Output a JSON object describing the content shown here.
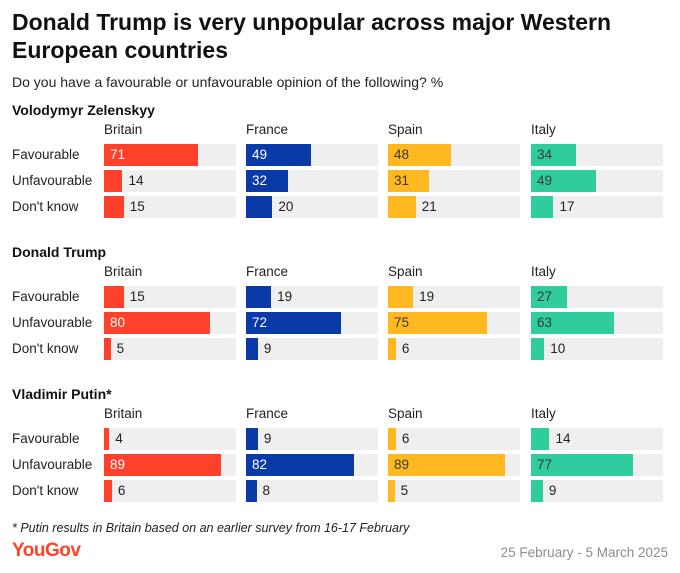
{
  "title": "Donald Trump is very unpopular across major Western European countries",
  "subtitle": "Do you have a favourable or unfavourable opinion of the following? %",
  "footnote": "* Putin results in Britain based on an earlier survey from 16-17 February",
  "brand": "YouGov",
  "date_range": "25 February - 5 March 2025",
  "colors": {
    "Britain": "#ff412c",
    "France": "#0a3aa8",
    "Spain": "#ffb81f",
    "Italy": "#2fcc9e",
    "track": "#efefef"
  },
  "chart_data": {
    "type": "bar",
    "orientation": "horizontal",
    "xlim": [
      0,
      100
    ],
    "countries": [
      "Britain",
      "France",
      "Spain",
      "Italy"
    ],
    "categories": [
      "Favourable",
      "Unfavourable",
      "Don't know"
    ],
    "panels": [
      {
        "name": "Volodymyr Zelenskyy",
        "values": {
          "Britain": [
            71,
            14,
            15
          ],
          "France": [
            49,
            32,
            20
          ],
          "Spain": [
            48,
            31,
            21
          ],
          "Italy": [
            34,
            49,
            17
          ]
        }
      },
      {
        "name": "Donald Trump",
        "values": {
          "Britain": [
            15,
            80,
            5
          ],
          "France": [
            19,
            72,
            9
          ],
          "Spain": [
            19,
            75,
            6
          ],
          "Italy": [
            27,
            63,
            10
          ]
        }
      },
      {
        "name": "Vladimir Putin*",
        "values": {
          "Britain": [
            4,
            89,
            6
          ],
          "France": [
            9,
            82,
            8
          ],
          "Spain": [
            6,
            89,
            5
          ],
          "Italy": [
            14,
            77,
            9
          ]
        }
      }
    ]
  }
}
